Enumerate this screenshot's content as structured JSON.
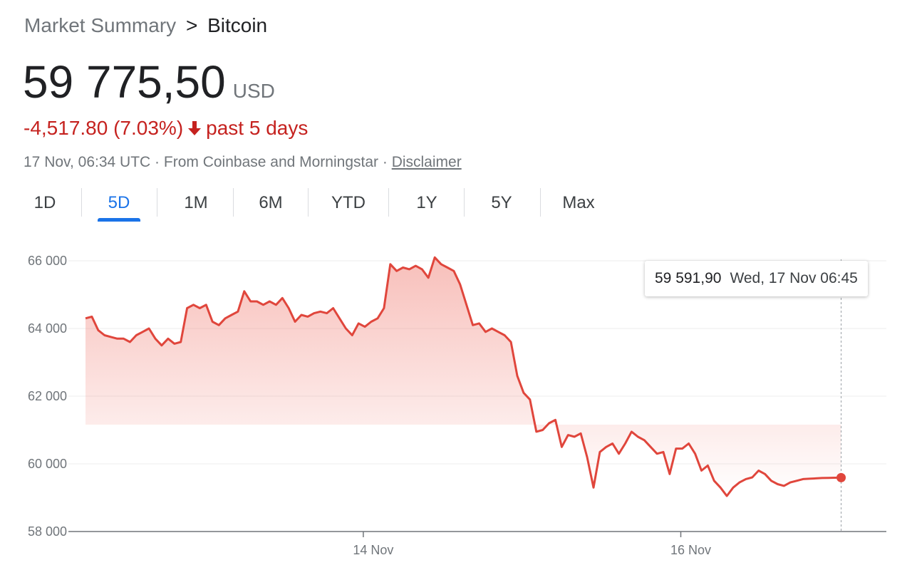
{
  "breadcrumb": {
    "parent": "Market Summary",
    "separator": ">",
    "current": "Bitcoin"
  },
  "quote": {
    "price": "59 775,50",
    "currency": "USD",
    "change": "-4,517.80 (7.03%)",
    "change_direction_icon": "arrow-down-icon",
    "period": "past 5 days",
    "timestamp": "17 Nov, 06:34 UTC",
    "source": "From Coinbase and Morningstar",
    "disclaimer": "Disclaimer"
  },
  "tabs": [
    {
      "label": "1D",
      "active": false
    },
    {
      "label": "5D",
      "active": true
    },
    {
      "label": "1M",
      "active": false
    },
    {
      "label": "6M",
      "active": false
    },
    {
      "label": "YTD",
      "active": false
    },
    {
      "label": "1Y",
      "active": false
    },
    {
      "label": "5Y",
      "active": false
    },
    {
      "label": "Max",
      "active": false
    }
  ],
  "tooltip": {
    "value": "59 591,90",
    "date": "Wed, 17 Nov 06:45"
  },
  "colors": {
    "negative": "#c5221f",
    "line": "#e0463c",
    "accent": "#1a73e8",
    "muted": "#70757a"
  },
  "chart_data": {
    "type": "area",
    "ylim": [
      58000,
      66000
    ],
    "yticks": [
      58000,
      60000,
      62000,
      64000,
      66000
    ],
    "ytick_labels": [
      "58 000",
      "60 000",
      "62 000",
      "64 000",
      "66 000"
    ],
    "xlim": [
      0,
      5
    ],
    "xticks": [
      1.75,
      3.75
    ],
    "xtick_labels": [
      "14 Nov",
      "16 Nov"
    ],
    "grid": true,
    "series": [
      {
        "x": [
          0,
          0.04,
          0.08,
          0.12,
          0.16,
          0.2,
          0.24,
          0.28,
          0.32,
          0.36,
          0.4,
          0.44,
          0.48,
          0.52,
          0.56,
          0.6,
          0.64,
          0.68,
          0.72,
          0.76,
          0.8,
          0.84,
          0.88,
          0.92,
          0.96,
          1,
          1.04,
          1.08,
          1.12,
          1.16,
          1.2,
          1.24,
          1.28,
          1.32,
          1.36,
          1.4,
          1.44,
          1.48,
          1.52,
          1.56,
          1.6,
          1.64,
          1.68,
          1.72,
          1.76,
          1.8,
          1.84,
          1.88,
          1.92,
          1.96,
          2,
          2.04,
          2.08,
          2.12,
          2.16,
          2.2,
          2.24,
          2.28,
          2.32,
          2.36,
          2.4,
          2.44,
          2.48,
          2.52,
          2.56,
          2.6,
          2.64,
          2.68,
          2.72,
          2.76,
          2.8,
          2.84,
          2.88,
          2.92,
          2.96,
          3,
          3.04,
          3.08,
          3.12,
          3.16,
          3.2,
          3.24,
          3.28,
          3.32,
          3.36,
          3.4,
          3.44,
          3.48,
          3.52,
          3.56,
          3.6,
          3.64,
          3.68,
          3.72,
          3.76,
          3.8,
          3.84,
          3.88,
          3.92,
          3.96,
          4,
          4.04,
          4.08,
          4.12,
          4.16,
          4.2,
          4.24,
          4.28,
          4.32,
          4.36,
          4.4,
          4.44,
          4.48,
          4.52,
          4.56,
          4.6,
          4.64,
          4.68,
          4.72,
          4.76
        ],
        "values": [
          64300,
          64350,
          63950,
          63800,
          63750,
          63700,
          63700,
          63600,
          63800,
          63900,
          64000,
          63700,
          63500,
          63700,
          63550,
          63600,
          64600,
          64700,
          64600,
          64700,
          64200,
          64100,
          64300,
          64400,
          64500,
          65100,
          64800,
          64800,
          64700,
          64800,
          64700,
          64900,
          64600,
          64200,
          64400,
          64350,
          64450,
          64500,
          64450,
          64600,
          64300,
          64000,
          63800,
          64150,
          64050,
          64200,
          64300,
          64600,
          65900,
          65700,
          65800,
          65750,
          65850,
          65750,
          65500,
          66100,
          65900,
          65800,
          65700,
          65300,
          64700,
          64100,
          64150,
          63900,
          64000,
          63900,
          63800,
          63600,
          62600,
          62100,
          61900,
          60950,
          61000,
          61200,
          61300,
          60500,
          60850,
          60800,
          60900,
          60200,
          59300,
          60350,
          60500,
          60600,
          60300,
          60600,
          60950,
          60800,
          60700,
          60500,
          60300,
          60350,
          59700,
          60450,
          60450,
          60600,
          60300,
          59800,
          59950,
          59500,
          59300,
          59050,
          59300,
          59450,
          59550,
          59600,
          59800,
          59700,
          59500,
          59400,
          59350,
          59450,
          59500,
          59550,
          59560,
          59570,
          59580,
          59585,
          59590,
          59592
        ]
      }
    ]
  }
}
